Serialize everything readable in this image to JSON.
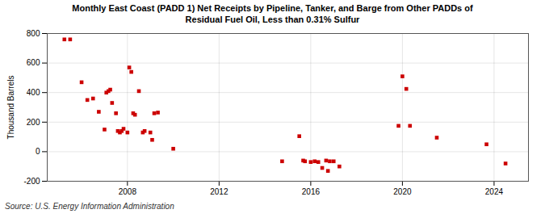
{
  "chart_data": {
    "type": "scatter",
    "title": "Monthly East Coast (PADD 1) Net Receipts by Pipeline, Tanker, and Barge from Other PADDs of\nResidual Fuel Oil, Less than 0.31% Sulfur",
    "ylabel": "Thousand Barrels",
    "source": "Source: U.S. Energy Information Administration",
    "color": "#cc0000",
    "marker": "square",
    "grid": true,
    "xlim": [
      2004.5,
      2025.5
    ],
    "xticks": [
      2008,
      2012,
      2016,
      2020,
      2024
    ],
    "ylim": [
      -200,
      800
    ],
    "yticks": [
      -200,
      0,
      200,
      400,
      600,
      800
    ],
    "x": [
      2005.25,
      2005.5,
      2006.0,
      2006.25,
      2006.5,
      2006.75,
      2007.0,
      2007.08,
      2007.17,
      2007.25,
      2007.33,
      2007.5,
      2007.58,
      2007.67,
      2007.75,
      2007.83,
      2008.0,
      2008.08,
      2008.17,
      2008.25,
      2008.33,
      2008.5,
      2008.67,
      2008.75,
      2009.0,
      2009.08,
      2009.17,
      2009.33,
      2010.0,
      2014.75,
      2015.5,
      2015.67,
      2015.75,
      2016.0,
      2016.17,
      2016.33,
      2016.5,
      2016.67,
      2016.75,
      2016.83,
      2017.0,
      2017.25,
      2019.83,
      2020.0,
      2020.17,
      2020.33,
      2021.5,
      2023.67,
      2024.5
    ],
    "values": [
      760,
      760,
      470,
      350,
      360,
      270,
      150,
      400,
      410,
      420,
      330,
      260,
      140,
      130,
      140,
      155,
      130,
      570,
      540,
      260,
      250,
      410,
      130,
      140,
      130,
      80,
      260,
      265,
      20,
      -65,
      105,
      -60,
      -65,
      -70,
      -65,
      -70,
      -110,
      -60,
      -130,
      -65,
      -65,
      -100,
      175,
      510,
      425,
      175,
      95,
      50,
      -80
    ]
  }
}
